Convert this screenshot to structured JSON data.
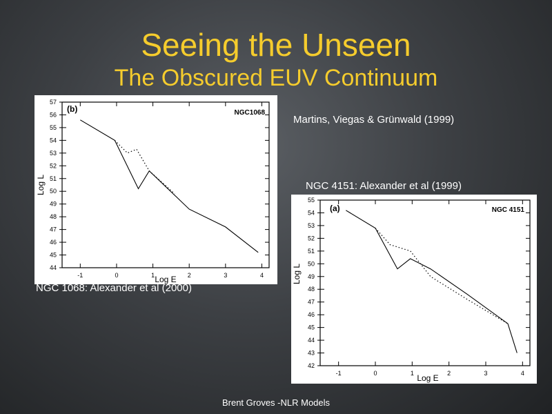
{
  "slide": {
    "title": "Seeing the Unseen",
    "subtitle": "The Obscured EUV Continuum",
    "footer": "Brent Groves -NLR Models"
  },
  "captions": {
    "martins": "Martins, Viegas & Grünwald (1999)",
    "ngc4151": "NGC 4151: Alexander et al (1999)",
    "ngc1068": "NGC 1068: Alexander et al (2000)"
  },
  "chart_data": [
    {
      "type": "line",
      "panel_label": "(b)",
      "object_label": "NGC1068",
      "xlabel": "Log E",
      "ylabel": "Log L",
      "xlim": [
        -1.5,
        4.2
      ],
      "ylim": [
        44,
        57
      ],
      "xticks": [
        -1,
        0,
        1,
        2,
        3,
        4
      ],
      "yticks": [
        44,
        45,
        46,
        47,
        48,
        49,
        50,
        51,
        52,
        53,
        54,
        55,
        56,
        57
      ],
      "series": [
        {
          "style": "solid",
          "x": [
            -1.0,
            -0.05,
            0.6,
            0.9,
            2.0,
            3.0,
            3.9
          ],
          "y": [
            55.6,
            54.0,
            50.2,
            51.6,
            48.6,
            47.2,
            45.2
          ]
        },
        {
          "style": "dotted",
          "x": [
            -0.05,
            0.3,
            0.55,
            0.9,
            1.6
          ],
          "y": [
            54.0,
            53.0,
            53.3,
            51.6,
            49.8
          ]
        }
      ]
    },
    {
      "type": "line",
      "panel_label": "(a)",
      "object_label": "NGC 4151",
      "xlabel": "Log E",
      "ylabel": "Log L",
      "xlim": [
        -1.5,
        4.2
      ],
      "ylim": [
        42,
        55
      ],
      "xticks": [
        -1,
        0,
        1,
        2,
        3,
        4
      ],
      "yticks": [
        42,
        43,
        44,
        45,
        46,
        47,
        48,
        49,
        50,
        51,
        52,
        53,
        54,
        55
      ],
      "series": [
        {
          "style": "solid",
          "x": [
            -0.8,
            0.0,
            0.6,
            0.95,
            1.5,
            2.5,
            3.6,
            3.85
          ],
          "y": [
            54.2,
            52.8,
            49.6,
            50.4,
            49.6,
            47.6,
            45.3,
            43.0
          ]
        },
        {
          "style": "dotted",
          "x": [
            0.0,
            0.4,
            0.95,
            1.5,
            2.5,
            3.6
          ],
          "y": [
            52.8,
            51.5,
            51.0,
            49.0,
            47.2,
            45.3
          ]
        }
      ]
    }
  ]
}
